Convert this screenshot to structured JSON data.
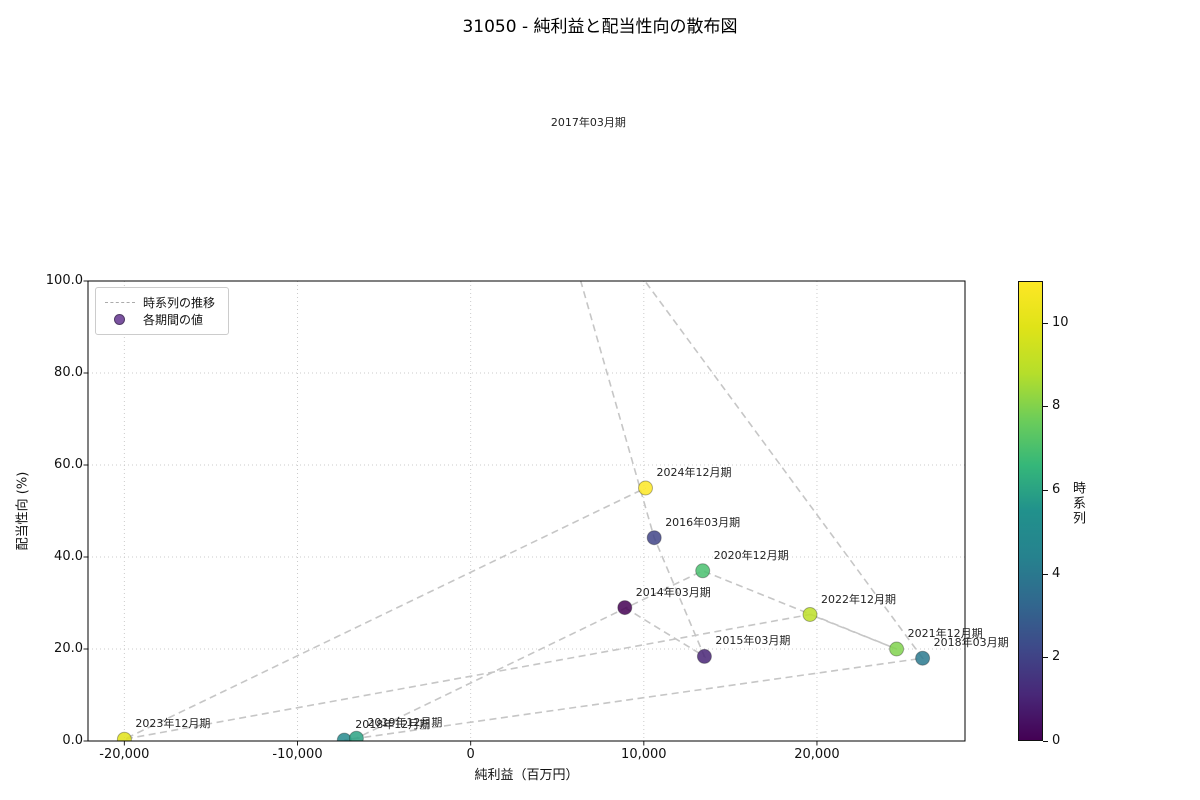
{
  "chart_data": {
    "type": "scatter",
    "title": "31050 - 純利益と配当性向の散布図",
    "xlabel": "純利益（百万円）",
    "ylabel": "配当性向 (%)",
    "xlim": [
      -22100,
      28550
    ],
    "ylim": [
      0,
      100
    ],
    "grid": true,
    "xticks": {
      "values": [
        -20000,
        -10000,
        0,
        10000,
        20000
      ],
      "labels": [
        "-20,000",
        "-10,000",
        "0",
        "10,000",
        "20,000"
      ]
    },
    "yticks": {
      "values": [
        0,
        20,
        40,
        60,
        80,
        100
      ],
      "labels": [
        "0.0",
        "20.0",
        "40.0",
        "60.0",
        "80.0",
        "100.0"
      ]
    },
    "legend": {
      "position": "upper-left",
      "items": [
        {
          "label": "時系列の推移",
          "marker": "dashed-line",
          "color": "#ababab"
        },
        {
          "label": "各期間の値",
          "marker": "circle",
          "color": "#7a52a0"
        }
      ]
    },
    "colorbar": {
      "label": "時系列",
      "colormap": "viridis",
      "vmin": 0,
      "vmax": 11,
      "ticks": [
        0,
        2,
        4,
        6,
        8,
        10
      ]
    },
    "points": [
      {
        "label": "2014年03月期",
        "x": 8900,
        "y": 29.0,
        "t": 0,
        "color": "#440154"
      },
      {
        "label": "2015年03月期",
        "x": 13500,
        "y": 18.4,
        "t": 1,
        "color": "#482475"
      },
      {
        "label": "2016年03月期",
        "x": 10600,
        "y": 44.2,
        "t": 2,
        "color": "#414487"
      },
      {
        "label": "2017年03月期",
        "x": 4000,
        "y": 131.0,
        "t": 3,
        "color": "#355f8d"
      },
      {
        "label": "2018年03月期",
        "x": 26100,
        "y": 18.0,
        "t": 4,
        "color": "#2a798e"
      },
      {
        "label": "2018年12月期",
        "x": -7300,
        "y": 0.2,
        "t": 5,
        "color": "#24898d"
      },
      {
        "label": "2019年12月期",
        "x": -6600,
        "y": 0.6,
        "t": 6,
        "color": "#2aa283"
      },
      {
        "label": "2020年12月期",
        "x": 13400,
        "y": 37.0,
        "t": 7,
        "color": "#49bf6e"
      },
      {
        "label": "2021年12月期",
        "x": 24600,
        "y": 20.0,
        "t": 8,
        "color": "#80d24d"
      },
      {
        "label": "2022年12月期",
        "x": 19600,
        "y": 27.5,
        "t": 9,
        "color": "#bddf28"
      },
      {
        "label": "2023年12月期",
        "x": -20000,
        "y": 0.4,
        "t": 10,
        "color": "#e2e319"
      },
      {
        "label": "2024年12月期",
        "x": 10100,
        "y": 55.0,
        "t": 11,
        "color": "#fde725"
      }
    ]
  }
}
